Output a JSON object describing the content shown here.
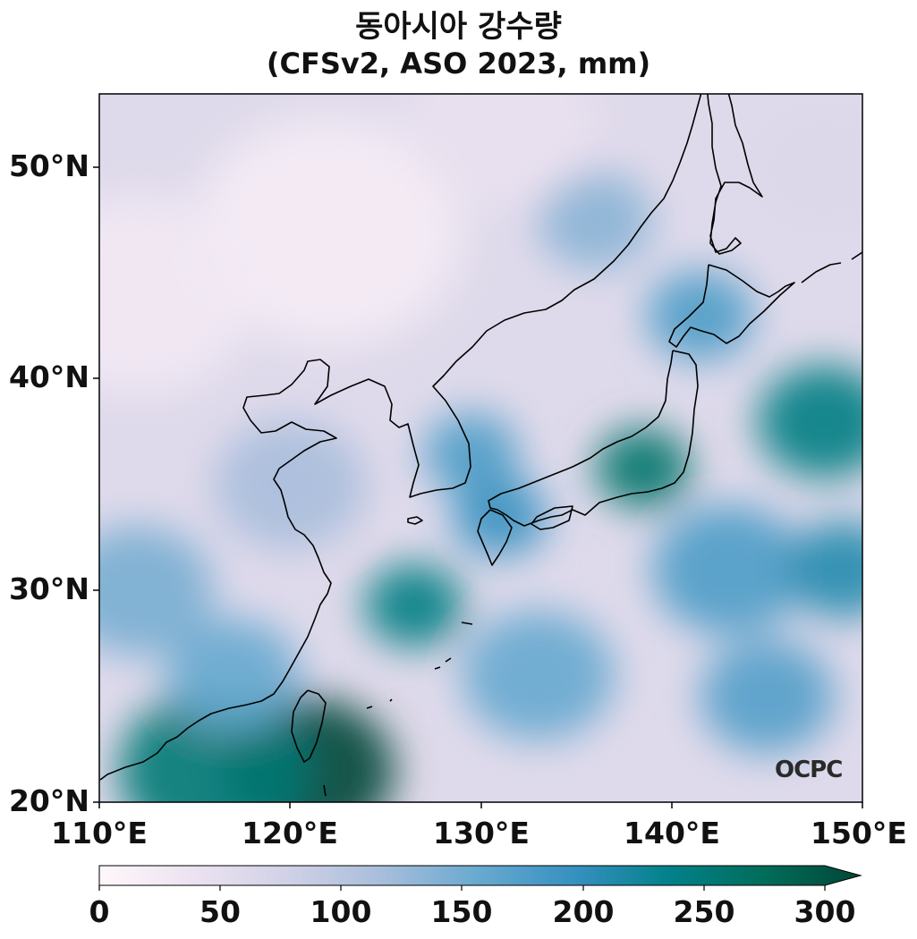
{
  "title": "동아시아 강수량",
  "subtitle": "(CFSv2, ASO 2023, mm)",
  "watermark": "OCPC",
  "lat_labels": [
    "50°N",
    "40°N",
    "30°N",
    "20°N"
  ],
  "lon_labels": [
    "110°E",
    "120°E",
    "130°E",
    "140°E",
    "150°E"
  ],
  "colorbar": {
    "ticks": [
      "0",
      "50",
      "100",
      "150",
      "200",
      "250",
      "300"
    ],
    "min": 0,
    "max": 300,
    "extend": "max",
    "colors": [
      "#fff7fb",
      "#ece2f0",
      "#d0d1e6",
      "#a6bddb",
      "#67a9cf",
      "#3690c0",
      "#02818a",
      "#016c59",
      "#014636"
    ]
  },
  "chart_data": {
    "type": "heatmap",
    "variable": "precipitation (mm)",
    "extent": {
      "lon": [
        110,
        150
      ],
      "lat": [
        20,
        53.5
      ]
    },
    "precip_field": {
      "background": 55,
      "features": [
        {
          "lon": 121,
          "lat": 21.5,
          "value": 300,
          "radius_deg": 4.5
        },
        {
          "lon": 116,
          "lat": 21.5,
          "value": 240,
          "radius_deg": 5
        },
        {
          "lon": 126.5,
          "lat": 29.3,
          "value": 230,
          "radius_deg": 2.6
        },
        {
          "lon": 138.5,
          "lat": 35.8,
          "value": 250,
          "radius_deg": 2.5
        },
        {
          "lon": 148,
          "lat": 38,
          "value": 230,
          "radius_deg": 3.5
        },
        {
          "lon": 129.5,
          "lat": 36.5,
          "value": 170,
          "radius_deg": 2.5
        },
        {
          "lon": 141.5,
          "lat": 43,
          "value": 170,
          "radius_deg": 2.8
        },
        {
          "lon": 131,
          "lat": 33.5,
          "value": 185,
          "radius_deg": 2.5
        },
        {
          "lon": 143,
          "lat": 31,
          "value": 170,
          "radius_deg": 4
        },
        {
          "lon": 149,
          "lat": 31,
          "value": 200,
          "radius_deg": 3
        },
        {
          "lon": 112,
          "lat": 30,
          "value": 140,
          "radius_deg": 4
        },
        {
          "lon": 117,
          "lat": 26,
          "value": 150,
          "radius_deg": 3.5
        },
        {
          "lon": 133,
          "lat": 26,
          "value": 150,
          "radius_deg": 4
        },
        {
          "lon": 145,
          "lat": 25,
          "value": 165,
          "radius_deg": 3.5
        },
        {
          "lon": 136,
          "lat": 47.5,
          "value": 130,
          "radius_deg": 3
        },
        {
          "lon": 120,
          "lat": 35,
          "value": 110,
          "radius_deg": 4
        },
        {
          "lon": 122,
          "lat": 47,
          "value": 20,
          "radius_deg": 7
        },
        {
          "lon": 112,
          "lat": 44,
          "value": 25,
          "radius_deg": 6
        },
        {
          "lon": 131,
          "lat": 52,
          "value": 40,
          "radius_deg": 5
        },
        {
          "lon": 148,
          "lat": 50,
          "value": 60,
          "radius_deg": 4
        }
      ]
    }
  }
}
